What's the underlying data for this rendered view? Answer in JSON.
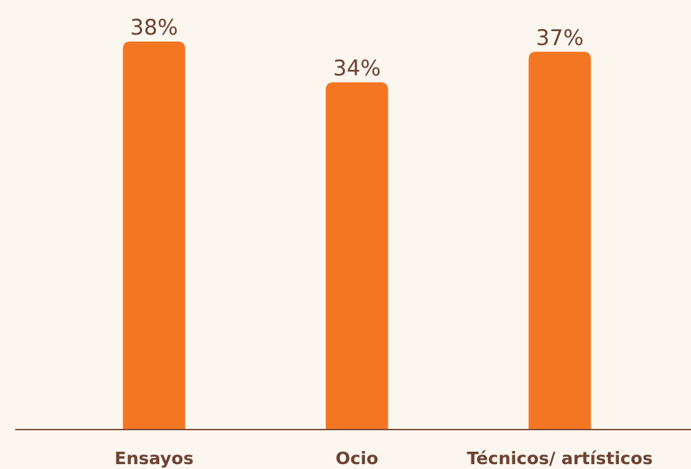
{
  "chart_data": {
    "type": "bar",
    "categories": [
      "Ensayos",
      "Ocio",
      "Técnicos/ artísticos"
    ],
    "values": [
      38,
      34,
      37
    ],
    "value_labels": [
      "38%",
      "34%",
      "37%"
    ],
    "color": "#f47623"
  }
}
